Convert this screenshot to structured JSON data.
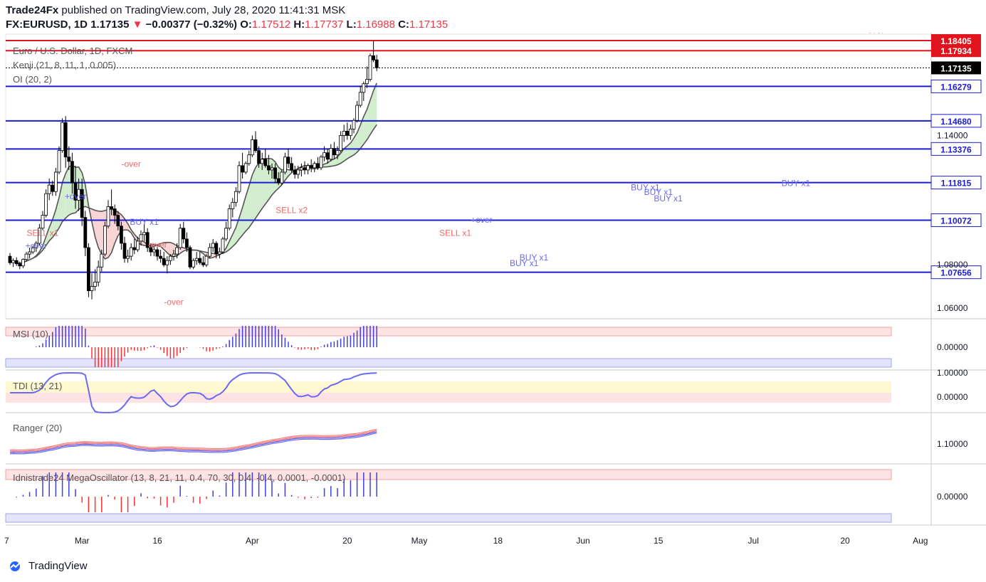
{
  "header": {
    "publisher": "Trade24Fx",
    "published_text": "published on TradingView.com, July 28, 2020 11:41:31 MSK",
    "symbol": "FX:EURUSD, 1D",
    "last": "1.17135",
    "change": "−0.00377 (−0.32%)",
    "o_label": "O:",
    "o": "1.17512",
    "h_label": "H:",
    "h": "1.17737",
    "l_label": "L:",
    "l": "1.16988",
    "c_label": "C:",
    "c": "1.17135"
  },
  "legends": {
    "main": "Euro / U.S. Dollar, 1D, FXCM",
    "kenji": "Kenji (21, 8, 11, 1, 0.005)",
    "oi": "OI (20, 2)",
    "msi": "MSI (10)",
    "tdi": "TDI (13, 21)",
    "ranger": "Ranger (20)",
    "mega": "Idnistrade24 MegaOscillator (13, 8, 21, 11, 0.4, 70, 30, 0.4, -0.4, 0.0001, -0.0001)"
  },
  "colors": {
    "up": "#ffffff",
    "down": "#000000",
    "level": "#1c1cd1",
    "red_level": "#e0141e",
    "band_up": "#c7e9c0",
    "band_dn": "#f6c9c9",
    "band_blue": "#d6d9f5",
    "ma": "#555555",
    "blue": "#4040e0",
    "red": "#ff3030",
    "green": "#3aa03a"
  },
  "brand": "TradingView",
  "chart_data": {
    "type": "candlestick",
    "x_ticks": [
      "7",
      "Mar",
      "16",
      "Apr",
      "20",
      "May",
      "18",
      "Jun",
      "15",
      "Jul",
      "20",
      "Aug"
    ],
    "y_ticks": [
      "1.14000",
      "1.08000",
      "1.06000"
    ],
    "osc_zero": "0.00000",
    "tdi_ticks": [
      "1.00000",
      "0.00000"
    ],
    "ranger_tick": "1.10000",
    "levels": [
      {
        "value": "1.18405",
        "color": "red"
      },
      {
        "value": "1.17934",
        "color": "red"
      },
      {
        "value": "1.17135",
        "color": "black"
      },
      {
        "value": "1.16279",
        "color": "blue"
      },
      {
        "value": "1.14680",
        "color": "blue"
      },
      {
        "value": "1.13376",
        "color": "blue"
      },
      {
        "value": "1.11815",
        "color": "blue"
      },
      {
        "value": "1.10072",
        "color": "blue"
      },
      {
        "value": "1.07656",
        "color": "blue"
      }
    ],
    "ylim": [
      1.055,
      1.187
    ],
    "annotations": [
      {
        "text": "+over",
        "d": 8,
        "p": 1.0875
      },
      {
        "text": "SELL x1",
        "d": 10,
        "p": 1.0935
      },
      {
        "text": "+over",
        "d": 20,
        "p": 1.1105
      },
      {
        "text": "-over",
        "d": 37,
        "p": 1.1255
      },
      {
        "text": "BUY x1",
        "d": 41,
        "p": 1.0985
      },
      {
        "text": "-over",
        "d": 45,
        "p": 1.088
      },
      {
        "text": "-over",
        "d": 50,
        "p": 1.0615
      },
      {
        "text": "SELL x2",
        "d": 86,
        "p": 1.104
      },
      {
        "text": "SELL x1",
        "d": 136,
        "p": 1.0935
      },
      {
        "text": "+over",
        "d": 144,
        "p": 1.0995
      },
      {
        "text": "BUY x1",
        "d": 160,
        "p": 1.082
      },
      {
        "text": "BUY x1",
        "d": 157,
        "p": 1.0795
      },
      {
        "text": "BUY x1",
        "d": 194,
        "p": 1.1145
      },
      {
        "text": "BUY x1",
        "d": 198,
        "p": 1.1125
      },
      {
        "text": "BUY x1",
        "d": 201,
        "p": 1.1095
      },
      {
        "text": "BUY x1",
        "d": 240,
        "p": 1.1165
      },
      {
        "text": "-over",
        "d": 264,
        "p": 1.1875
      }
    ],
    "candles": [
      [
        1.084,
        1.0855,
        1.08,
        1.081
      ],
      [
        1.081,
        1.083,
        1.079,
        1.082
      ],
      [
        1.082,
        1.0835,
        1.0795,
        1.0805
      ],
      [
        1.0805,
        1.0815,
        1.078,
        1.0795
      ],
      [
        1.0795,
        1.083,
        1.0785,
        1.0825
      ],
      [
        1.0825,
        1.086,
        1.0815,
        1.085
      ],
      [
        1.085,
        1.088,
        1.083,
        1.086
      ],
      [
        1.086,
        1.089,
        1.085,
        1.088
      ],
      [
        1.088,
        1.091,
        1.086,
        1.09
      ],
      [
        1.09,
        1.099,
        1.089,
        1.097
      ],
      [
        1.097,
        1.105,
        1.096,
        1.103
      ],
      [
        1.103,
        1.115,
        1.102,
        1.113
      ],
      [
        1.113,
        1.12,
        1.11,
        1.117
      ],
      [
        1.117,
        1.119,
        1.112,
        1.114
      ],
      [
        1.114,
        1.125,
        1.112,
        1.123
      ],
      [
        1.123,
        1.135,
        1.122,
        1.133
      ],
      [
        1.133,
        1.148,
        1.132,
        1.146
      ],
      [
        1.146,
        1.149,
        1.125,
        1.13
      ],
      [
        1.13,
        1.135,
        1.124,
        1.128
      ],
      [
        1.128,
        1.132,
        1.113,
        1.118
      ],
      [
        1.118,
        1.126,
        1.106,
        1.11
      ],
      [
        1.11,
        1.12,
        1.105,
        1.115
      ],
      [
        1.115,
        1.12,
        1.098,
        1.102
      ],
      [
        1.102,
        1.105,
        1.084,
        1.088
      ],
      [
        1.088,
        1.09,
        1.065,
        1.068
      ],
      [
        1.068,
        1.076,
        1.064,
        1.07
      ],
      [
        1.07,
        1.078,
        1.068,
        1.072
      ],
      [
        1.072,
        1.082,
        1.07,
        1.079
      ],
      [
        1.079,
        1.087,
        1.077,
        1.085
      ],
      [
        1.085,
        1.1,
        1.084,
        1.098
      ],
      [
        1.098,
        1.11,
        1.097,
        1.107
      ],
      [
        1.107,
        1.115,
        1.103,
        1.106
      ],
      [
        1.106,
        1.108,
        1.099,
        1.103
      ],
      [
        1.103,
        1.105,
        1.096,
        1.098
      ],
      [
        1.098,
        1.1,
        1.087,
        1.09
      ],
      [
        1.09,
        1.093,
        1.081,
        1.083
      ],
      [
        1.083,
        1.087,
        1.081,
        1.084
      ],
      [
        1.084,
        1.09,
        1.082,
        1.088
      ],
      [
        1.088,
        1.092,
        1.085,
        1.087
      ],
      [
        1.087,
        1.093,
        1.086,
        1.091
      ],
      [
        1.091,
        1.096,
        1.089,
        1.094
      ],
      [
        1.094,
        1.099,
        1.091,
        1.095
      ],
      [
        1.095,
        1.097,
        1.086,
        1.088
      ],
      [
        1.088,
        1.09,
        1.084,
        1.086
      ],
      [
        1.086,
        1.089,
        1.084,
        1.087
      ],
      [
        1.087,
        1.088,
        1.082,
        1.084
      ],
      [
        1.084,
        1.087,
        1.081,
        1.083
      ],
      [
        1.083,
        1.086,
        1.079,
        1.08
      ],
      [
        1.08,
        1.084,
        1.076,
        1.082
      ],
      [
        1.082,
        1.085,
        1.08,
        1.084
      ],
      [
        1.084,
        1.087,
        1.082,
        1.085
      ],
      [
        1.085,
        1.09,
        1.083,
        1.088
      ],
      [
        1.088,
        1.099,
        1.087,
        1.097
      ],
      [
        1.097,
        1.1,
        1.09,
        1.092
      ],
      [
        1.092,
        1.095,
        1.086,
        1.088
      ],
      [
        1.088,
        1.089,
        1.078,
        1.079
      ],
      [
        1.079,
        1.083,
        1.078,
        1.082
      ],
      [
        1.082,
        1.086,
        1.08,
        1.083
      ],
      [
        1.083,
        1.086,
        1.08,
        1.081
      ],
      [
        1.081,
        1.084,
        1.079,
        1.08
      ],
      [
        1.08,
        1.085,
        1.079,
        1.084
      ],
      [
        1.084,
        1.09,
        1.083,
        1.088
      ],
      [
        1.088,
        1.092,
        1.086,
        1.09
      ],
      [
        1.09,
        1.091,
        1.083,
        1.085
      ],
      [
        1.085,
        1.088,
        1.083,
        1.086
      ],
      [
        1.086,
        1.093,
        1.085,
        1.092
      ],
      [
        1.092,
        1.1,
        1.091,
        1.097
      ],
      [
        1.097,
        1.108,
        1.096,
        1.106
      ],
      [
        1.106,
        1.111,
        1.102,
        1.109
      ],
      [
        1.109,
        1.116,
        1.107,
        1.114
      ],
      [
        1.114,
        1.128,
        1.113,
        1.126
      ],
      [
        1.126,
        1.132,
        1.12,
        1.123
      ],
      [
        1.123,
        1.128,
        1.122,
        1.127
      ],
      [
        1.127,
        1.133,
        1.126,
        1.131
      ],
      [
        1.131,
        1.14,
        1.13,
        1.138
      ],
      [
        1.138,
        1.142,
        1.132,
        1.133
      ],
      [
        1.133,
        1.135,
        1.125,
        1.127
      ],
      [
        1.127,
        1.132,
        1.124,
        1.129
      ],
      [
        1.129,
        1.134,
        1.125,
        1.126
      ],
      [
        1.126,
        1.131,
        1.122,
        1.124
      ],
      [
        1.124,
        1.127,
        1.12,
        1.125
      ],
      [
        1.125,
        1.127,
        1.118,
        1.12
      ],
      [
        1.12,
        1.123,
        1.117,
        1.118
      ],
      [
        1.118,
        1.124,
        1.117,
        1.123
      ],
      [
        1.123,
        1.132,
        1.122,
        1.13
      ],
      [
        1.13,
        1.134,
        1.125,
        1.127
      ],
      [
        1.127,
        1.13,
        1.123,
        1.124
      ],
      [
        1.124,
        1.126,
        1.12,
        1.122
      ],
      [
        1.122,
        1.126,
        1.12,
        1.124
      ],
      [
        1.124,
        1.127,
        1.121,
        1.125
      ],
      [
        1.125,
        1.128,
        1.122,
        1.124
      ],
      [
        1.124,
        1.127,
        1.122,
        1.126
      ],
      [
        1.126,
        1.129,
        1.123,
        1.125
      ],
      [
        1.125,
        1.128,
        1.123,
        1.127
      ],
      [
        1.127,
        1.13,
        1.124,
        1.125
      ],
      [
        1.125,
        1.131,
        1.124,
        1.13
      ],
      [
        1.13,
        1.135,
        1.128,
        1.132
      ],
      [
        1.132,
        1.134,
        1.127,
        1.129
      ],
      [
        1.129,
        1.136,
        1.128,
        1.134
      ],
      [
        1.134,
        1.137,
        1.129,
        1.131
      ],
      [
        1.131,
        1.135,
        1.129,
        1.133
      ],
      [
        1.133,
        1.142,
        1.132,
        1.14
      ],
      [
        1.14,
        1.145,
        1.137,
        1.142
      ],
      [
        1.142,
        1.146,
        1.138,
        1.14
      ],
      [
        1.14,
        1.145,
        1.138,
        1.143
      ],
      [
        1.143,
        1.148,
        1.141,
        1.147
      ],
      [
        1.147,
        1.156,
        1.146,
        1.154
      ],
      [
        1.154,
        1.163,
        1.153,
        1.16
      ],
      [
        1.16,
        1.165,
        1.156,
        1.164
      ],
      [
        1.164,
        1.172,
        1.162,
        1.166
      ],
      [
        1.166,
        1.178,
        1.165,
        1.177
      ],
      [
        1.177,
        1.184,
        1.174,
        1.175
      ],
      [
        1.1751,
        1.1774,
        1.1699,
        1.1714
      ]
    ]
  }
}
